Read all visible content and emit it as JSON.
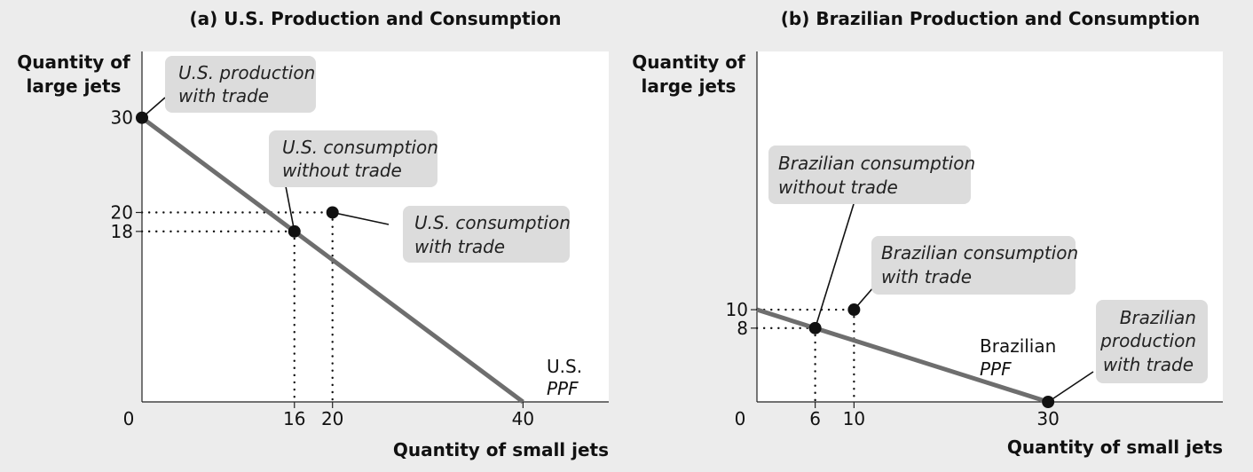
{
  "chart_data": [
    {
      "type": "line",
      "title": "(a) U.S. Production and Consumption",
      "xlabel": "Quantity of small jets",
      "ylabel_lines": [
        "Quantity of",
        "large jets"
      ],
      "origin_label": "0",
      "xlim": [
        0,
        49
      ],
      "ylim": [
        0,
        37
      ],
      "xticks": [
        16,
        20,
        40
      ],
      "yticks": [
        18,
        20,
        30
      ],
      "ppf": {
        "x": [
          0,
          40
        ],
        "y": [
          30,
          0
        ],
        "label_lines": [
          "U.S.",
          "PPF"
        ]
      },
      "points": [
        {
          "name": "us-production-with-trade",
          "x": 0,
          "y": 30,
          "label_lines": [
            "U.S. production",
            "with trade"
          ]
        },
        {
          "name": "us-consumption-without-trade",
          "x": 16,
          "y": 18,
          "label_lines": [
            "U.S. consumption",
            "without trade"
          ]
        },
        {
          "name": "us-consumption-with-trade",
          "x": 20,
          "y": 20,
          "label_lines": [
            "U.S. consumption",
            "with trade"
          ]
        }
      ]
    },
    {
      "type": "line",
      "title": "(b) Brazilian Production and Consumption",
      "xlabel": "Quantity of small jets",
      "ylabel_lines": [
        "Quantity of",
        "large jets"
      ],
      "origin_label": "0",
      "xlim": [
        0,
        48
      ],
      "ylim": [
        0,
        38
      ],
      "xticks": [
        6,
        10,
        30
      ],
      "yticks": [
        8,
        10
      ],
      "ppf": {
        "x": [
          0,
          30
        ],
        "y": [
          10,
          0
        ],
        "label_lines": [
          "Brazilian",
          "PPF"
        ]
      },
      "points": [
        {
          "name": "brazil-consumption-without-trade",
          "x": 6,
          "y": 8,
          "label_lines": [
            "Brazilian consumption",
            "without trade"
          ]
        },
        {
          "name": "brazil-consumption-with-trade",
          "x": 10,
          "y": 10,
          "label_lines": [
            "Brazilian consumption",
            "with trade"
          ]
        },
        {
          "name": "brazil-production-with-trade",
          "x": 30,
          "y": 0,
          "label_lines": [
            "Brazilian",
            "production",
            "with trade"
          ]
        }
      ]
    }
  ]
}
